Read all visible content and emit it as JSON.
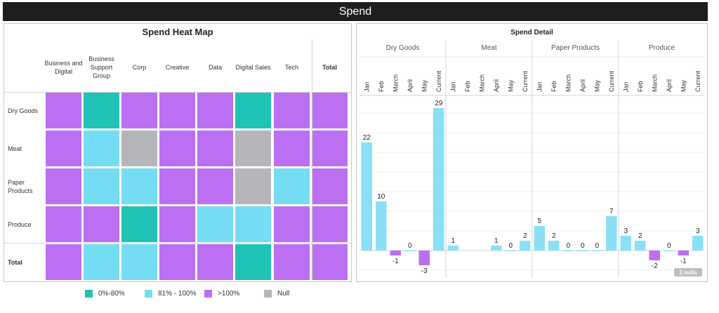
{
  "page_title": "Spend",
  "heatmap": {
    "title": "Spend Heat Map",
    "columns": [
      "Business and Digital",
      "Business Support Group",
      "Corp",
      "Creative",
      "Data",
      "Digital Sales",
      "Tech",
      "Total"
    ],
    "rows": [
      "Dry Goods",
      "Meat",
      "Paper Products",
      "Produce",
      "Total"
    ],
    "cells": [
      [
        "over",
        "low",
        "over",
        "over",
        "over",
        "low",
        "over",
        "over"
      ],
      [
        "over",
        "mid",
        "null",
        "over",
        "over",
        "null",
        "over",
        "over"
      ],
      [
        "over",
        "mid",
        "mid",
        "over",
        "over",
        "null",
        "mid",
        "over"
      ],
      [
        "over",
        "over",
        "low",
        "over",
        "mid",
        "mid",
        "over",
        "over"
      ],
      [
        "over",
        "mid",
        "mid",
        "over",
        "over",
        "low",
        "over",
        "over"
      ]
    ],
    "colors": {
      "low": "#1fc2b4",
      "mid": "#74dcf3",
      "over": "#bb6ff3",
      "null": "#b4b6ba"
    }
  },
  "legend": [
    {
      "label": "0%-80%",
      "key": "low"
    },
    {
      "label": "81% - 100%",
      "key": "mid"
    },
    {
      "label": ">100%",
      "key": "over"
    },
    {
      "label": "Null",
      "key": "null"
    }
  ],
  "chart_data": {
    "type": "bar",
    "title": "Spend Detail",
    "categories": [
      "Jan",
      "Feb",
      "March",
      "April",
      "May",
      "Current"
    ],
    "series": [
      {
        "name": "Dry Goods",
        "values": [
          22,
          10,
          -1,
          0,
          -3,
          29
        ]
      },
      {
        "name": "Meat",
        "values": [
          1,
          null,
          null,
          1,
          0,
          2
        ]
      },
      {
        "name": "Paper Products",
        "values": [
          5,
          2,
          0,
          0,
          0,
          7
        ]
      },
      {
        "name": "Produce",
        "values": [
          3,
          2,
          -2,
          0,
          -1,
          3
        ]
      }
    ],
    "colors": {
      "positive": "#8ae0f7",
      "negative": "#bb6ff3"
    },
    "ylim": [
      -5,
      31
    ],
    "grid": true,
    "nulls_indicator": "2 nulls"
  }
}
